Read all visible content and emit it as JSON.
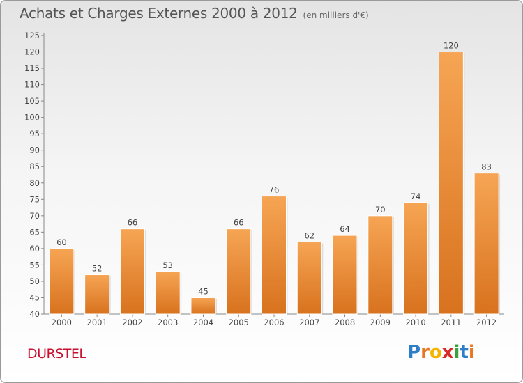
{
  "title": "Achats et Charges Externes 2000 à 2012",
  "unit": "(en milliers d'€)",
  "commune": "DURSTEL",
  "logo": {
    "text": "Proxiti",
    "letters": [
      "P",
      "r",
      "o",
      "x",
      "i",
      "t",
      "i"
    ],
    "colors": [
      "#2e7ec8",
      "#e87722",
      "#f4b400",
      "#d92a2a",
      "#3aa23a",
      "#2e7ec8",
      "#e87722"
    ]
  },
  "colors": {
    "bar_top": "#f6a554",
    "bar_bottom": "#d8721e",
    "commune": "#c8102e"
  },
  "chart_data": {
    "type": "bar",
    "title": "Achats et Charges Externes 2000 à 2012",
    "subtitle": "(en milliers d'€)",
    "categories": [
      "2000",
      "2001",
      "2002",
      "2003",
      "2004",
      "2005",
      "2006",
      "2007",
      "2008",
      "2009",
      "2010",
      "2011",
      "2012"
    ],
    "values": [
      60,
      52,
      66,
      53,
      45,
      66,
      76,
      62,
      64,
      70,
      74,
      120,
      83
    ],
    "data_labels": [
      "60",
      "52",
      "66",
      "53",
      "45",
      "66",
      "76",
      "62",
      "64",
      "70",
      "74",
      "120",
      "83"
    ],
    "ylim": [
      40,
      125
    ],
    "yticks": [
      40,
      45,
      50,
      55,
      60,
      65,
      70,
      75,
      80,
      85,
      90,
      95,
      100,
      105,
      110,
      115,
      120,
      125
    ],
    "ytick_labels": [
      "40",
      "45",
      "50",
      "55",
      "60",
      "65",
      "70",
      "75",
      "80",
      "85",
      "90",
      "95",
      "100",
      "105",
      "110",
      "115",
      "120",
      "125"
    ],
    "grid": false,
    "legend": "none"
  }
}
